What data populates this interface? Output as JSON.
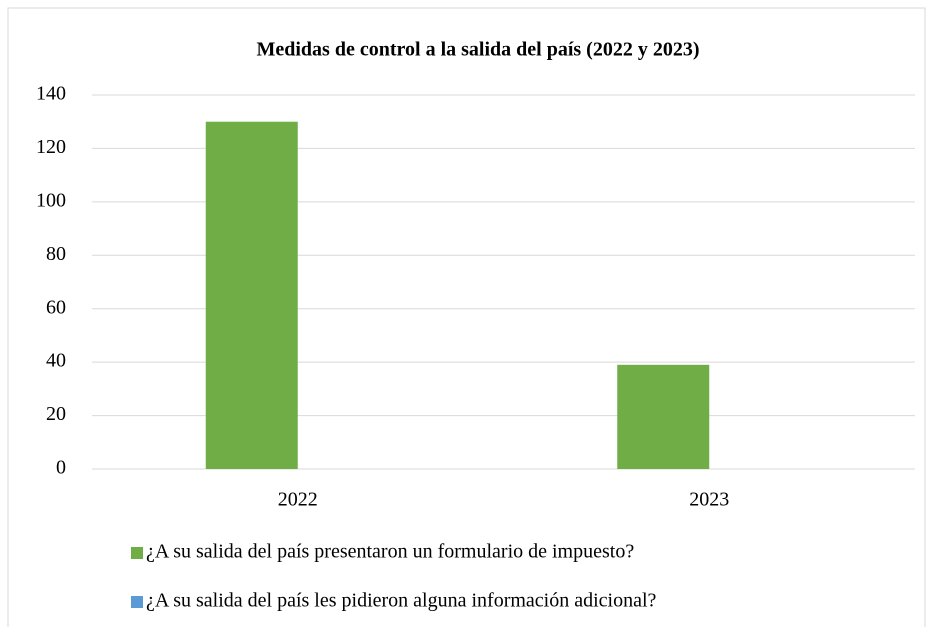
{
  "chart_data": {
    "type": "bar",
    "title": "Medidas de control a la salida del país (2022 y 2023)",
    "categories": [
      "2022",
      "2023"
    ],
    "series": [
      {
        "name": "¿A su salida del país presentaron un formulario de impuesto?",
        "color": "#70ad47",
        "values": [
          130,
          39
        ]
      },
      {
        "name": "¿A su salida del país les pidieron alguna información adicional?",
        "color": "#5b9bd5",
        "values": [
          0,
          0
        ]
      }
    ],
    "ylim": [
      0,
      140
    ],
    "yticks": [
      0,
      20,
      40,
      60,
      80,
      100,
      120,
      140
    ],
    "grid": true
  }
}
